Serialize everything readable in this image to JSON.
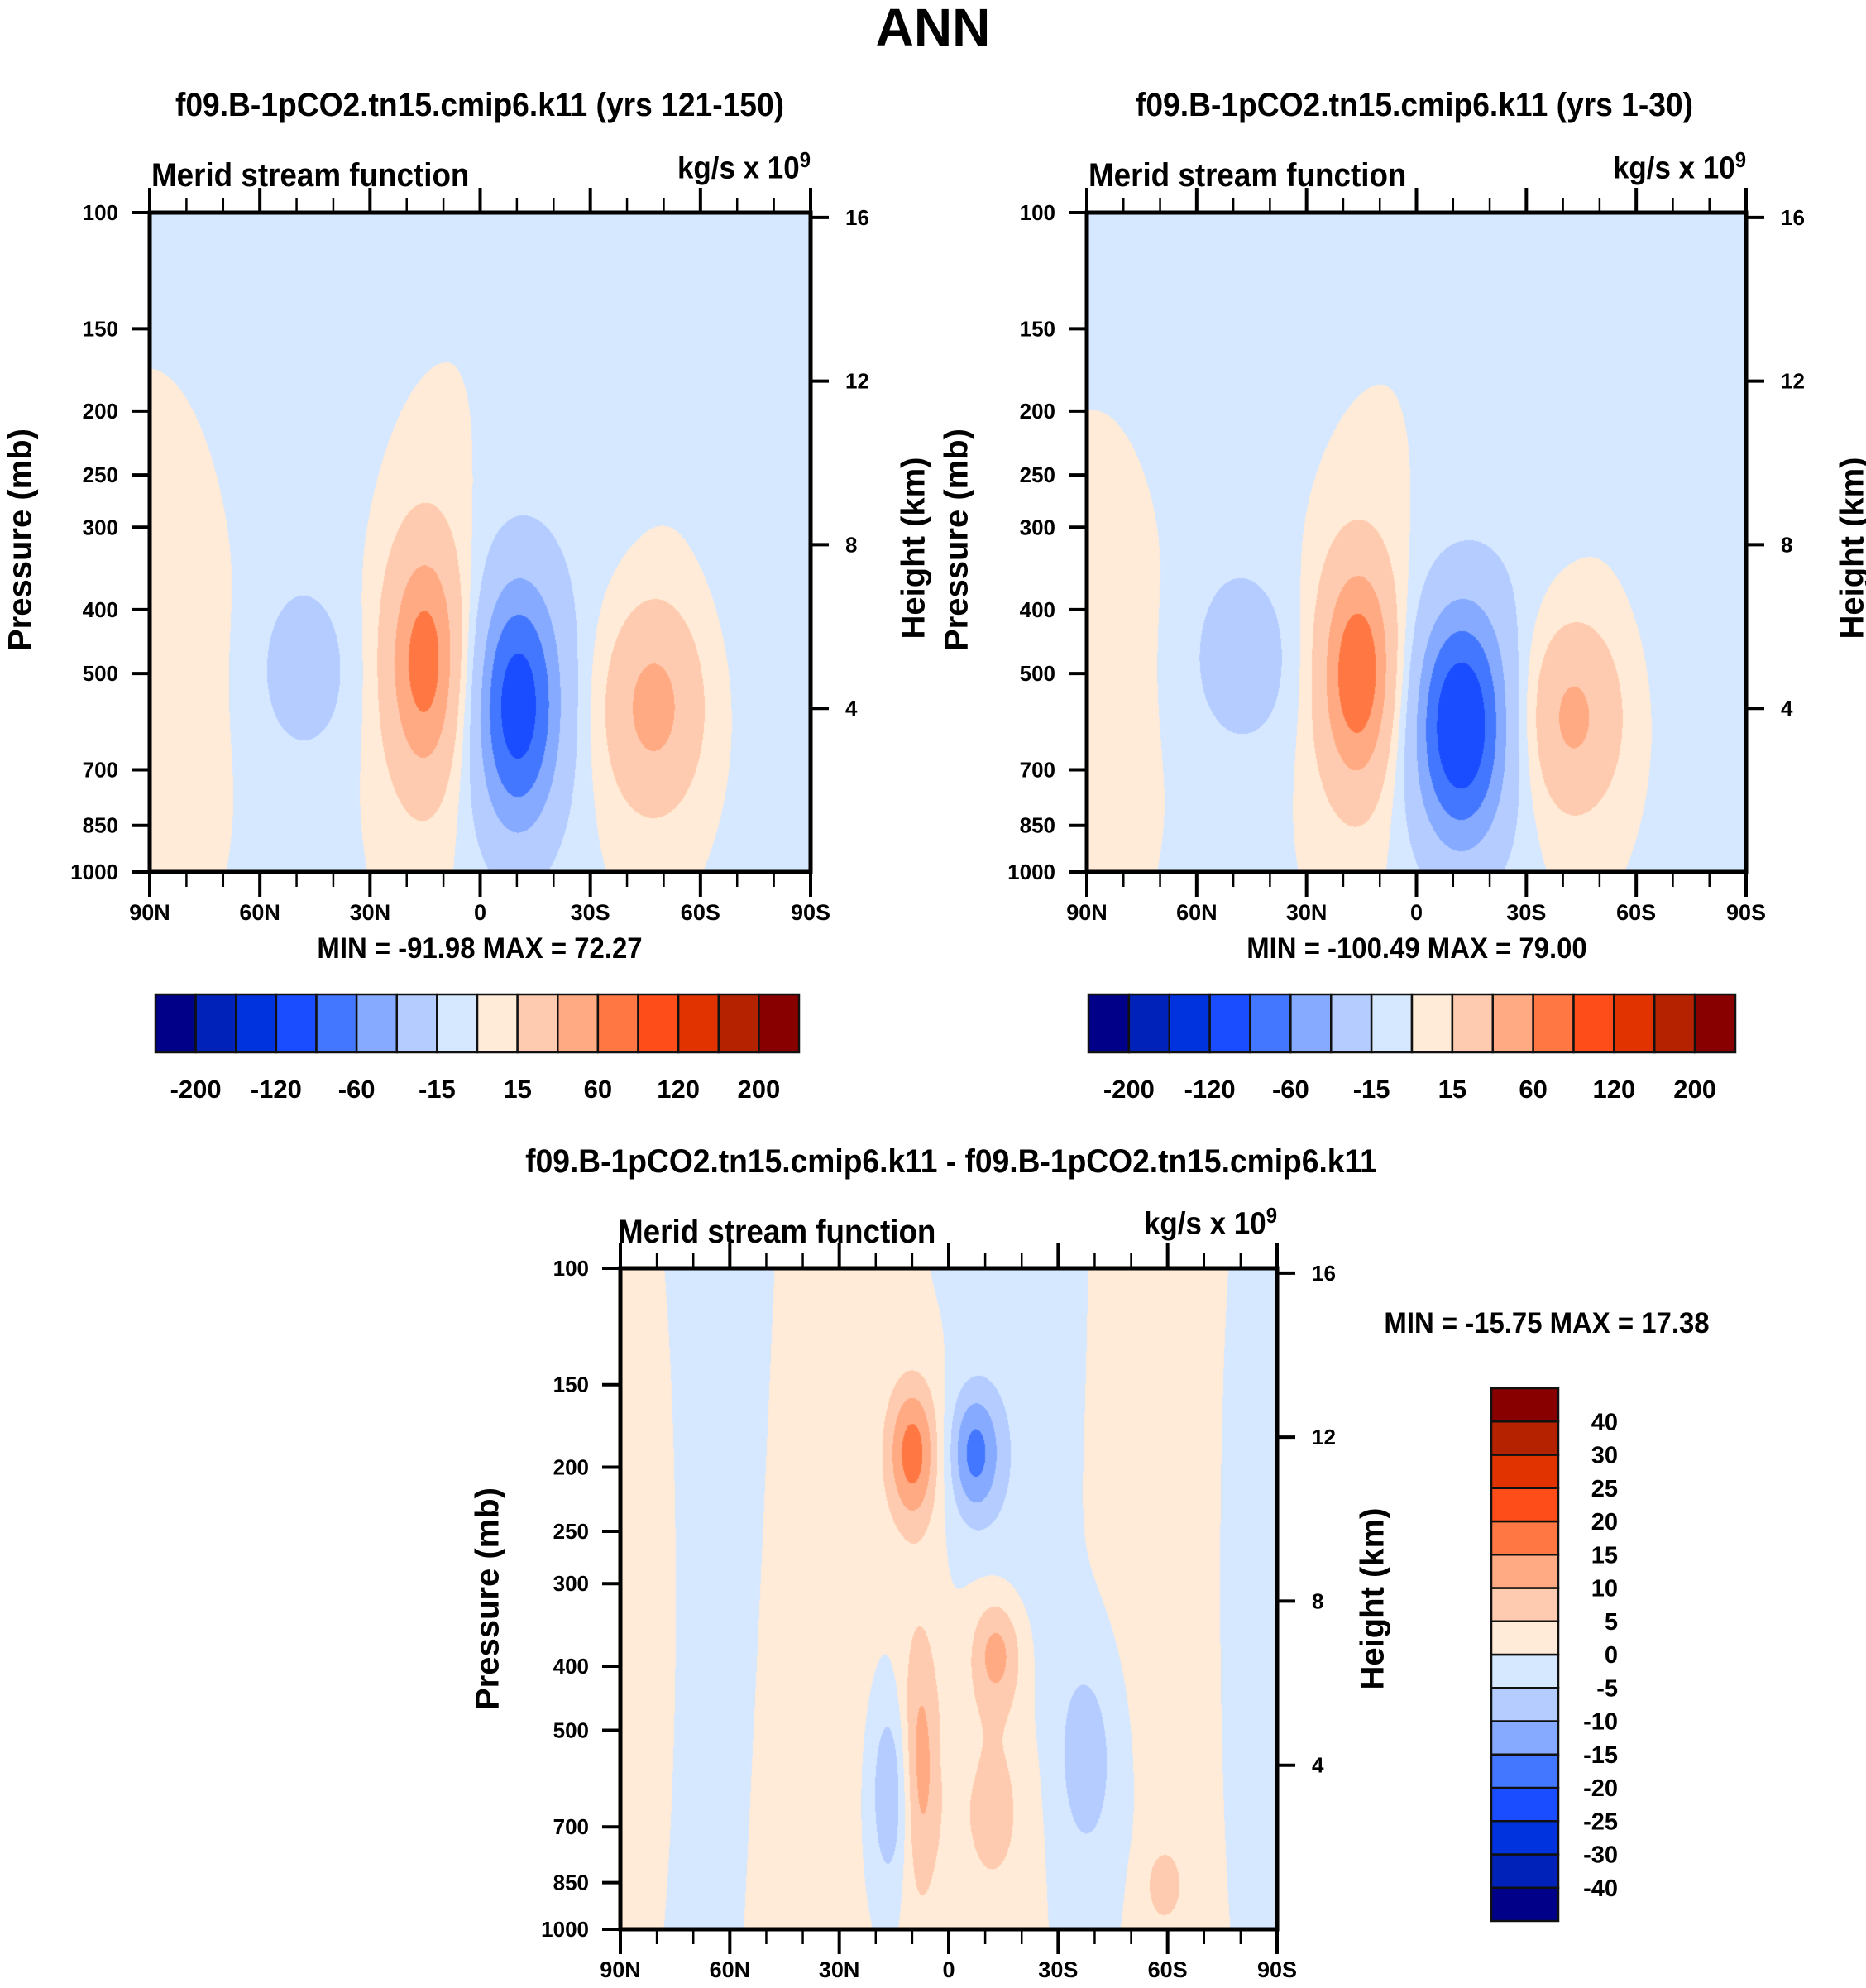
{
  "figure_title": "ANN",
  "chart_data": [
    {
      "type": "heatmap",
      "id": "panel_a",
      "title": "f09.B-1pCO2.tn15.cmip6.k11 (yrs 121-150)",
      "left_string": "Merid stream function",
      "right_string": "kg/s x 10",
      "right_string_exp": "9",
      "xlabel": "",
      "ylabel": "Pressure (mb)",
      "y2label": "Height (km)",
      "x_ticks": [
        "90N",
        "60N",
        "30N",
        "0",
        "30S",
        "60S",
        "90S"
      ],
      "x_range": [
        90,
        -90
      ],
      "y_ticks": [
        "100",
        "150",
        "200",
        "250",
        "300",
        "400",
        "500",
        "700",
        "850",
        "1000"
      ],
      "y_range": [
        100,
        1000
      ],
      "y_scale": "log",
      "y2_ticks": [
        "16",
        "12",
        "8",
        "4"
      ],
      "stats": "MIN = -91.98  MAX =  72.27",
      "min": -91.98,
      "max": 72.27,
      "colorbar": {
        "orientation": "horizontal",
        "levels": [
          -200,
          -160,
          -120,
          -80,
          -60,
          -40,
          -15,
          0,
          15,
          40,
          60,
          80,
          120,
          160,
          200
        ],
        "labels": [
          "-200",
          "-120",
          "-60",
          "-15",
          "15",
          "60",
          "120",
          "200"
        ],
        "colors": [
          "#000088",
          "#0022b8",
          "#0033dd",
          "#1a4dff",
          "#4477ff",
          "#85aaff",
          "#b4ccff",
          "#d6e8ff",
          "#ffebd7",
          "#ffcbb0",
          "#ffaa82",
          "#ff7844",
          "#ff4d1a",
          "#e03300",
          "#b52200",
          "#880000"
        ]
      },
      "features": [
        {
          "lat": 48,
          "p": 500,
          "dlat": 9,
          "dp_log": 0.2,
          "value": -22
        },
        {
          "lat": 15,
          "p": 480,
          "dlat": 8,
          "dp_log": 0.32,
          "value": 72.27
        },
        {
          "lat": -10,
          "p": 560,
          "dlat": 9,
          "dp_log": 0.34,
          "value": -91.98
        },
        {
          "lat": -47,
          "p": 560,
          "dlat": 10,
          "dp_log": 0.26,
          "value": 50
        },
        {
          "lat": 75,
          "p": 400,
          "dlat": 12,
          "dp_log": 0.5,
          "value": 8
        },
        {
          "lat": 55,
          "p": 300,
          "dlat": 18,
          "dp_log": 0.7,
          "value": -8
        },
        {
          "lat": -30,
          "p": 300,
          "dlat": 12,
          "dp_log": 0.7,
          "value": -6
        },
        {
          "lat": -72,
          "p": 400,
          "dlat": 12,
          "dp_log": 0.7,
          "value": -6
        }
      ]
    },
    {
      "type": "heatmap",
      "id": "panel_b",
      "title": "f09.B-1pCO2.tn15.cmip6.k11 (yrs 1-30)",
      "left_string": "Merid stream function",
      "right_string": "kg/s x 10",
      "right_string_exp": "9",
      "xlabel": "",
      "ylabel": "Pressure (mb)",
      "y2label": "Height (km)",
      "x_ticks": [
        "90N",
        "60N",
        "30N",
        "0",
        "30S",
        "60S",
        "90S"
      ],
      "x_range": [
        90,
        -90
      ],
      "y_ticks": [
        "100",
        "150",
        "200",
        "250",
        "300",
        "400",
        "500",
        "700",
        "850",
        "1000"
      ],
      "y_range": [
        100,
        1000
      ],
      "y_scale": "log",
      "y2_ticks": [
        "16",
        "12",
        "8",
        "4"
      ],
      "stats": "MIN = -100.49  MAX =  79.00",
      "min": -100.49,
      "max": 79.0,
      "colorbar": {
        "orientation": "horizontal",
        "levels": [
          -200,
          -160,
          -120,
          -80,
          -60,
          -40,
          -15,
          0,
          15,
          40,
          60,
          80,
          120,
          160,
          200
        ],
        "labels": [
          "-200",
          "-120",
          "-60",
          "-15",
          "15",
          "60",
          "120",
          "200"
        ],
        "colors": [
          "#000088",
          "#0022b8",
          "#0033dd",
          "#1a4dff",
          "#4477ff",
          "#85aaff",
          "#b4ccff",
          "#d6e8ff",
          "#ffebd7",
          "#ffcbb0",
          "#ffaa82",
          "#ff7844",
          "#ff4d1a",
          "#e03300",
          "#b52200",
          "#880000"
        ]
      },
      "features": [
        {
          "lat": 47,
          "p": 480,
          "dlat": 11,
          "dp_log": 0.22,
          "value": -22
        },
        {
          "lat": 16,
          "p": 500,
          "dlat": 8,
          "dp_log": 0.3,
          "value": 79.0
        },
        {
          "lat": -12,
          "p": 600,
          "dlat": 10,
          "dp_log": 0.32,
          "value": -100.49
        },
        {
          "lat": -42,
          "p": 580,
          "dlat": 10,
          "dp_log": 0.24,
          "value": 48
        },
        {
          "lat": 75,
          "p": 400,
          "dlat": 12,
          "dp_log": 0.5,
          "value": 8
        },
        {
          "lat": 58,
          "p": 300,
          "dlat": 18,
          "dp_log": 0.7,
          "value": -8
        },
        {
          "lat": -30,
          "p": 300,
          "dlat": 12,
          "dp_log": 0.7,
          "value": -6
        },
        {
          "lat": -72,
          "p": 400,
          "dlat": 12,
          "dp_log": 0.7,
          "value": -6
        }
      ]
    },
    {
      "type": "heatmap",
      "id": "panel_diff",
      "title": "f09.B-1pCO2.tn15.cmip6.k11 - f09.B-1pCO2.tn15.cmip6.k11",
      "left_string": "Merid stream function",
      "right_string": "kg/s x 10",
      "right_string_exp": "9",
      "xlabel": "",
      "ylabel": "Pressure (mb)",
      "y2label": "Height (km)",
      "x_ticks": [
        "90N",
        "60N",
        "30N",
        "0",
        "30S",
        "60S",
        "90S"
      ],
      "x_range": [
        90,
        -90
      ],
      "y_ticks": [
        "100",
        "150",
        "200",
        "250",
        "300",
        "400",
        "500",
        "700",
        "850",
        "1000"
      ],
      "y_range": [
        100,
        1000
      ],
      "y_scale": "log",
      "y2_ticks": [
        "16",
        "12",
        "8",
        "4"
      ],
      "stats": "MIN = -15.75  MAX =  17.38",
      "min": -15.75,
      "max": 17.38,
      "colorbar": {
        "orientation": "vertical",
        "levels": [
          -40,
          -30,
          -25,
          -20,
          -15,
          -10,
          -5,
          0,
          5,
          10,
          15,
          20,
          25,
          30,
          40
        ],
        "labels": [
          "-40",
          "-30",
          "-25",
          "-20",
          "-15",
          "-10",
          "-5",
          "0",
          "5",
          "10",
          "15",
          "20",
          "25",
          "30",
          "40"
        ],
        "colors": [
          "#000088",
          "#0022b8",
          "#0033dd",
          "#1a4dff",
          "#4477ff",
          "#85aaff",
          "#b4ccff",
          "#d6e8ff",
          "#ffebd7",
          "#ffcbb0",
          "#ffaa82",
          "#ff7844",
          "#ff4d1a",
          "#e03300",
          "#b52200",
          "#880000"
        ]
      },
      "features": [
        {
          "lat": 10,
          "p": 190,
          "dlat": 5,
          "dp_log": 0.18,
          "value": 17.38
        },
        {
          "lat": 8,
          "p": 560,
          "dlat": 4,
          "dp_log": 0.35,
          "value": 12
        },
        {
          "lat": -7,
          "p": 190,
          "dlat": 5,
          "dp_log": 0.16,
          "value": -15.75
        },
        {
          "lat": 16,
          "p": 620,
          "dlat": 4,
          "dp_log": 0.24,
          "value": -11
        },
        {
          "lat": -13,
          "p": 380,
          "dlat": 5,
          "dp_log": 0.14,
          "value": 12
        },
        {
          "lat": -12,
          "p": 650,
          "dlat": 8,
          "dp_log": 0.28,
          "value": 7
        },
        {
          "lat": -38,
          "p": 550,
          "dlat": 7,
          "dp_log": 0.3,
          "value": -8
        },
        {
          "lat": -59,
          "p": 860,
          "dlat": 4,
          "dp_log": 0.1,
          "value": 7
        },
        {
          "lat": -2,
          "p": 540,
          "dlat": 3,
          "dp_log": 0.08,
          "value": -2
        },
        {
          "lat": 62,
          "p": 300,
          "dlat": 12,
          "dp_log": 0.8,
          "value": -3
        },
        {
          "lat": 40,
          "p": 400,
          "dlat": 15,
          "dp_log": 0.8,
          "value": 3
        },
        {
          "lat": -20,
          "p": 200,
          "dlat": 10,
          "dp_log": 0.6,
          "value": -3
        },
        {
          "lat": -60,
          "p": 300,
          "dlat": 15,
          "dp_log": 0.7,
          "value": 3
        },
        {
          "lat": -80,
          "p": 300,
          "dlat": 6,
          "dp_log": 0.6,
          "value": -3
        },
        {
          "lat": 82,
          "p": 300,
          "dlat": 6,
          "dp_log": 0.6,
          "value": 3
        }
      ]
    }
  ]
}
